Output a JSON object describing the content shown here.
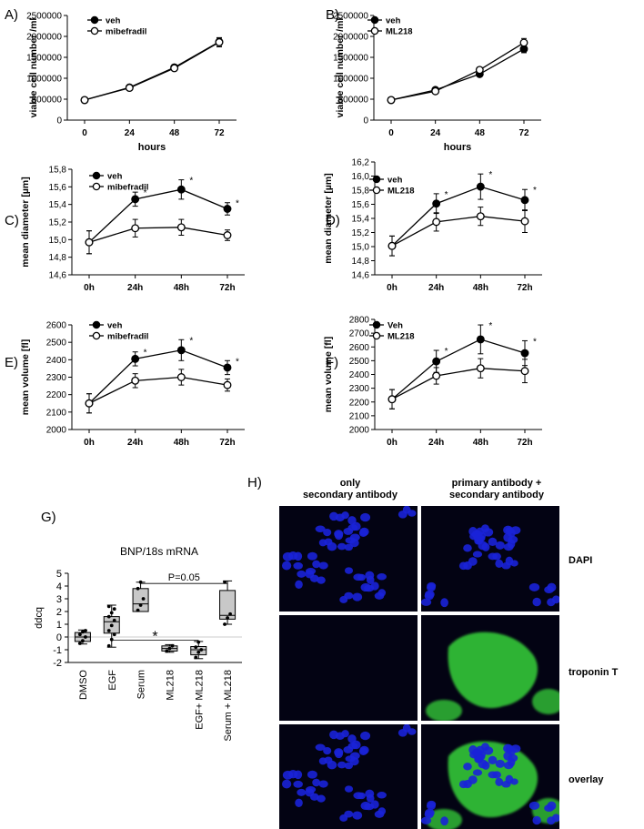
{
  "panels": {
    "A": {
      "label": "A)"
    },
    "B": {
      "label": "B)"
    },
    "C": {
      "label": "C)"
    },
    "D": {
      "label": "D)"
    },
    "E": {
      "label": "E)"
    },
    "F": {
      "label": "F)"
    },
    "G": {
      "label": "G)"
    },
    "H": {
      "label": "H)"
    }
  },
  "chart_data": [
    {
      "id": "A",
      "type": "line",
      "ylabel": "viable cell number /ml",
      "xlabel": "hours",
      "categories": [
        "0",
        "24",
        "48",
        "72"
      ],
      "ylim": [
        0,
        2500000
      ],
      "yticks": [
        0,
        500000,
        1000000,
        1500000,
        2000000,
        2500000
      ],
      "ytick_labels": [
        "0",
        "500000",
        "1000000",
        "1500000",
        "2000000",
        "2500000"
      ],
      "legend": "top-left",
      "series": [
        {
          "name": "veh",
          "marker": "filled",
          "values": [
            480000,
            780000,
            1260000,
            1870000
          ],
          "err": [
            20000,
            30000,
            50000,
            90000
          ]
        },
        {
          "name": "mibefradil",
          "marker": "open",
          "values": [
            480000,
            770000,
            1240000,
            1860000
          ],
          "err": [
            20000,
            30000,
            50000,
            110000
          ]
        }
      ],
      "stars": []
    },
    {
      "id": "B",
      "type": "line",
      "ylabel": "viable cell number /ml",
      "xlabel": "hours",
      "categories": [
        "0",
        "24",
        "48",
        "72"
      ],
      "ylim": [
        0,
        2500000
      ],
      "yticks": [
        0,
        500000,
        1000000,
        1500000,
        2000000,
        2500000
      ],
      "ytick_labels": [
        "0",
        "500000",
        "1000000",
        "1500000",
        "2000000",
        "2500000"
      ],
      "legend": "top-left",
      "series": [
        {
          "name": "veh",
          "marker": "filled",
          "values": [
            480000,
            720000,
            1100000,
            1700000
          ],
          "err": [
            20000,
            30000,
            50000,
            90000
          ]
        },
        {
          "name": "ML218",
          "marker": "open",
          "values": [
            480000,
            690000,
            1200000,
            1850000
          ],
          "err": [
            20000,
            30000,
            60000,
            100000
          ]
        }
      ],
      "stars": []
    },
    {
      "id": "C",
      "type": "line",
      "ylabel": "mean diameter [µm]",
      "xlabel": "",
      "categories": [
        "0h",
        "24h",
        "48h",
        "72h"
      ],
      "ylim": [
        14.6,
        15.8
      ],
      "yticks": [
        14.6,
        14.8,
        15.0,
        15.2,
        15.4,
        15.6,
        15.8
      ],
      "ytick_labels": [
        "14,6",
        "14,8",
        "15,0",
        "15,2",
        "15,4",
        "15,6",
        "15,8"
      ],
      "legend": "top-left",
      "series": [
        {
          "name": "veh",
          "marker": "filled",
          "values": [
            14.97,
            15.46,
            15.57,
            15.35
          ],
          "err": [
            0.13,
            0.08,
            0.11,
            0.07
          ]
        },
        {
          "name": "mibefradil",
          "marker": "open",
          "values": [
            14.97,
            15.13,
            15.14,
            15.05
          ],
          "err": [
            0.13,
            0.1,
            0.09,
            0.06
          ]
        }
      ],
      "stars": [
        1,
        2,
        3
      ]
    },
    {
      "id": "D",
      "type": "line",
      "ylabel": "mean diameter [µm]",
      "xlabel": "",
      "categories": [
        "0h",
        "24h",
        "48h",
        "72h"
      ],
      "ylim": [
        14.6,
        16.2
      ],
      "yticks": [
        14.6,
        14.8,
        15.0,
        15.2,
        15.4,
        15.6,
        15.8,
        16.0,
        16.2
      ],
      "ytick_labels": [
        "14,6",
        "14,8",
        "15,0",
        "15,2",
        "15,4",
        "15,6",
        "15,8",
        "16,0",
        "16,2"
      ],
      "legend": "top-left",
      "series": [
        {
          "name": "veh",
          "marker": "filled",
          "values": [
            15.01,
            15.61,
            15.85,
            15.66
          ],
          "err": [
            0.14,
            0.14,
            0.18,
            0.15
          ]
        },
        {
          "name": "ML218",
          "marker": "open",
          "values": [
            15.01,
            15.35,
            15.43,
            15.36
          ],
          "err": [
            0.14,
            0.13,
            0.13,
            0.16
          ]
        }
      ],
      "stars": [
        1,
        2,
        3
      ]
    },
    {
      "id": "E",
      "type": "line",
      "ylabel": "mean volume [fl]",
      "xlabel": "",
      "categories": [
        "0h",
        "24h",
        "48h",
        "72h"
      ],
      "ylim": [
        2000,
        2600
      ],
      "yticks": [
        2000,
        2100,
        2200,
        2300,
        2400,
        2500,
        2600
      ],
      "ytick_labels": [
        "2000",
        "2100",
        "2200",
        "2300",
        "2400",
        "2500",
        "2600"
      ],
      "legend": "top-left",
      "series": [
        {
          "name": "veh",
          "marker": "filled",
          "values": [
            2150,
            2405,
            2455,
            2355
          ],
          "err": [
            55,
            40,
            60,
            40
          ]
        },
        {
          "name": "mibefradil",
          "marker": "open",
          "values": [
            2150,
            2280,
            2300,
            2255
          ],
          "err": [
            55,
            40,
            45,
            35
          ]
        }
      ],
      "stars": [
        1,
        2,
        3
      ]
    },
    {
      "id": "F",
      "type": "line",
      "ylabel": "mean volume [fl]",
      "xlabel": "",
      "categories": [
        "0h",
        "24h",
        "48h",
        "72h"
      ],
      "ylim": [
        2000,
        2800
      ],
      "yticks": [
        2000,
        2100,
        2200,
        2300,
        2400,
        2500,
        2600,
        2700,
        2800
      ],
      "ytick_labels": [
        "2000",
        "2100",
        "2200",
        "2300",
        "2400",
        "2500",
        "2600",
        "2700",
        "2800"
      ],
      "legend": "top-left",
      "series": [
        {
          "name": "Veh",
          "marker": "filled",
          "values": [
            2220,
            2495,
            2655,
            2555
          ],
          "err": [
            70,
            80,
            105,
            90
          ]
        },
        {
          "name": "ML218",
          "marker": "open",
          "values": [
            2220,
            2390,
            2445,
            2425
          ],
          "err": [
            70,
            60,
            70,
            85
          ]
        }
      ],
      "stars": [
        1,
        2,
        3
      ]
    },
    {
      "id": "G",
      "type": "box",
      "title": "BNP/18s mRNA",
      "ylabel": "ddcq",
      "ylim": [
        -2,
        5
      ],
      "yticks": [
        -2,
        -1,
        0,
        1,
        2,
        3,
        4,
        5
      ],
      "ytick_labels": [
        "-2",
        "-1",
        "0",
        "1",
        "2",
        "3",
        "4",
        "5"
      ],
      "categories": [
        "DMSO",
        "EGF",
        "Serum",
        "ML218",
        "EGF+ ML218",
        "Serum + ML218"
      ],
      "boxes": [
        {
          "min": -0.55,
          "q1": -0.35,
          "median": 0.0,
          "q3": 0.35,
          "max": 0.55,
          "points": [
            -0.5,
            -0.3,
            0.0,
            0.2,
            0.4,
            0.5
          ]
        },
        {
          "min": -0.8,
          "q1": 0.3,
          "median": 1.2,
          "q3": 1.6,
          "max": 2.5,
          "points": [
            -0.7,
            -0.2,
            0.2,
            0.5,
            0.9,
            1.3,
            1.6,
            1.9,
            2.2,
            2.4
          ]
        },
        {
          "min": 2.0,
          "q1": 2.0,
          "median": 2.6,
          "q3": 3.8,
          "max": 4.3,
          "points": [
            2.1,
            2.5,
            3.0,
            3.8,
            4.3
          ]
        },
        {
          "min": -1.2,
          "q1": -1.1,
          "median": -0.9,
          "q3": -0.7,
          "max": -0.6,
          "points": [
            -1.1,
            -0.9,
            -0.7
          ]
        },
        {
          "min": -1.7,
          "q1": -1.4,
          "median": -1.0,
          "q3": -0.75,
          "max": -0.35,
          "points": [
            -1.6,
            -1.2,
            -1.0,
            -0.8,
            -0.4
          ]
        },
        {
          "min": 1.0,
          "q1": 1.4,
          "median": 1.7,
          "q3": 3.65,
          "max": 4.4,
          "points": [
            1.0,
            1.5,
            1.8,
            4.3
          ]
        }
      ],
      "annotations": [
        {
          "text": "P=0.05",
          "from": 2,
          "to": 5,
          "y": 4.2
        },
        {
          "text": "*",
          "from": 1,
          "to": 4,
          "y": -0.25
        }
      ]
    }
  ],
  "micrographs": {
    "columns": [
      "only\nsecondary antibody",
      "primary antibody +\nsecondary antibody"
    ],
    "rows": [
      "DAPI",
      "troponin T",
      "overlay"
    ],
    "colors": {
      "dapi": "#1a22d8",
      "troponin": "#36d23a",
      "background": "#030313"
    }
  }
}
